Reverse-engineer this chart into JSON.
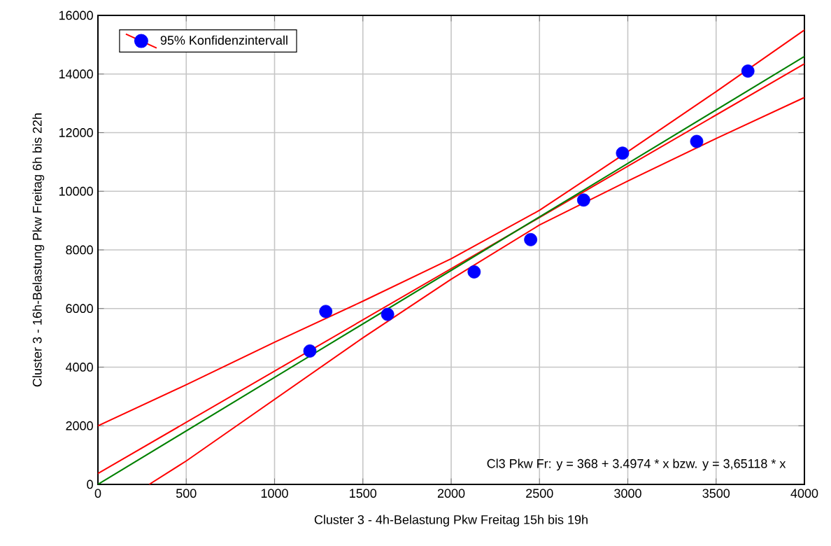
{
  "chart_data": {
    "type": "line",
    "xlabel": "Cluster 3 - 4h-Belastung Pkw Freitag 15h bis 19h",
    "ylabel": "Cluster 3 - 16h-Belastung Pkw Freitag 6h bis 22h",
    "xlim": [
      0,
      4000
    ],
    "ylim": [
      0,
      16000
    ],
    "xticks": [
      0,
      500,
      1000,
      1500,
      2000,
      2500,
      3000,
      3500,
      4000
    ],
    "yticks": [
      0,
      2000,
      4000,
      6000,
      8000,
      10000,
      12000,
      14000,
      16000
    ],
    "grid": true,
    "legend": "top left",
    "annotations": [
      "Cl3 Pkw Fr:  y = 368 + 3.4974 * x   bzw.  y = 3,65118 * x"
    ],
    "series": [
      {
        "type": "scatter",
        "marker": "circle",
        "color": "#0000ff",
        "x": [
          1200,
          1290,
          1640,
          2130,
          2450,
          2750,
          2970,
          3390,
          3680
        ],
        "values": [
          4550,
          5900,
          5800,
          7250,
          8350,
          9700,
          11300,
          11700,
          14100
        ]
      },
      {
        "color": "#ff0000",
        "x": [
          0,
          4000
        ],
        "values": [
          370,
          14350
        ]
      },
      {
        "color": "#008000",
        "x": [
          0,
          4000
        ],
        "values": [
          0,
          14600
        ]
      },
      {
        "name": "95% Konfidenzintervall",
        "color": "#ff0000",
        "x": [
          0,
          500,
          1000,
          1500,
          2000,
          2500,
          3000,
          3500,
          4000
        ],
        "values": [
          2000,
          3400,
          4850,
          6250,
          7700,
          9350,
          11350,
          13400,
          15500
        ]
      },
      {
        "color": "#ff0000",
        "x": [
          290,
          500,
          1000,
          1500,
          2000,
          2500,
          3000,
          3500,
          4000
        ],
        "values": [
          0,
          800,
          2900,
          5000,
          7000,
          8850,
          10350,
          11800,
          13200
        ]
      }
    ]
  }
}
